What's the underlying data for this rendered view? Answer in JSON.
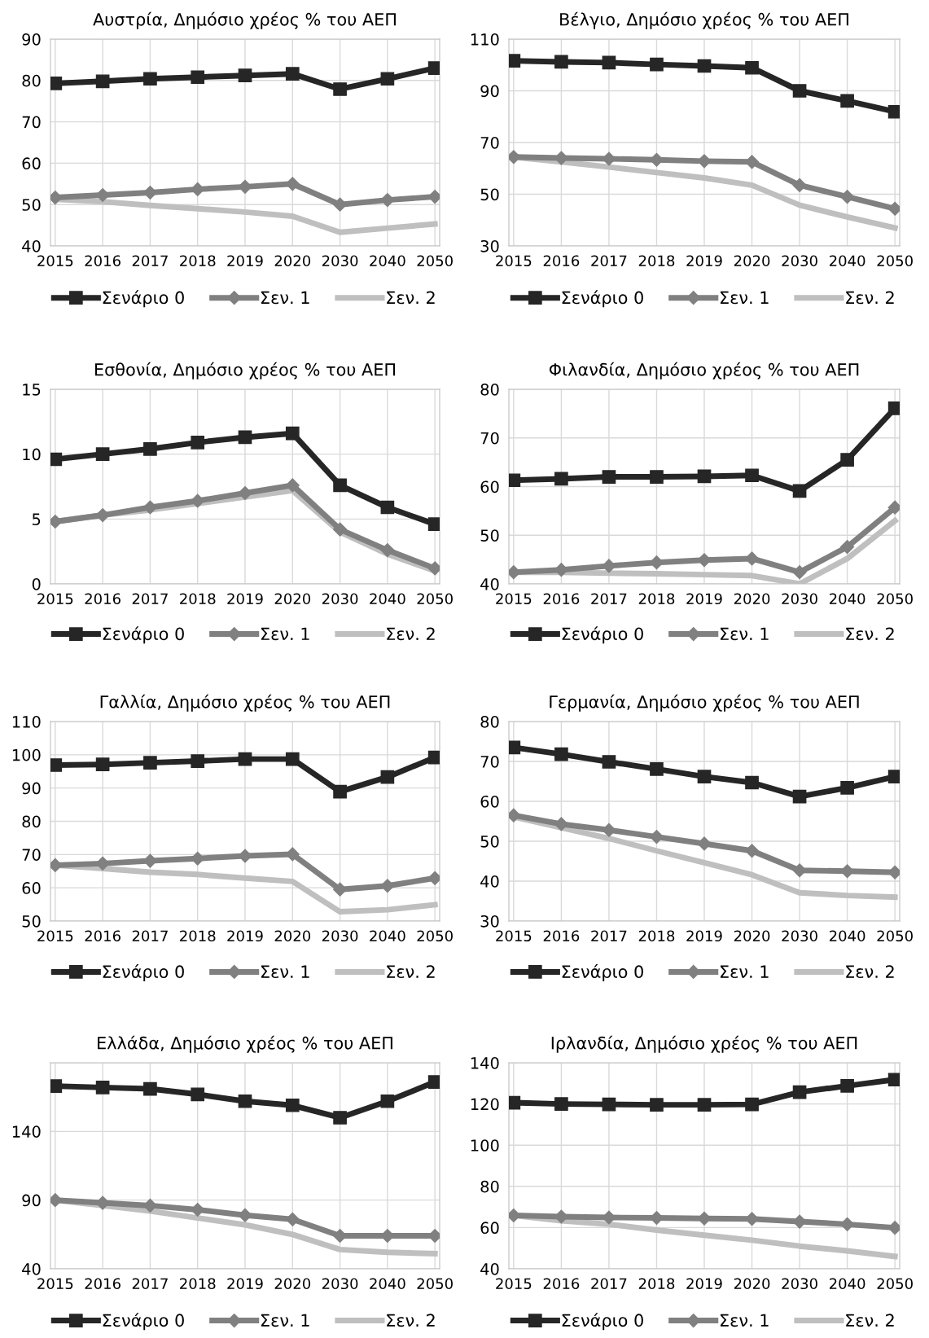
{
  "chart_data": [
    {
      "type": "line",
      "title": "Αυστρία, Δημόσιο χρέος % του ΑΕΠ",
      "categories": [
        "2015",
        "2016",
        "2017",
        "2018",
        "2019",
        "2020",
        "2030",
        "2040",
        "2050"
      ],
      "ylim": [
        40,
        90
      ],
      "yticks": [
        40,
        50,
        60,
        70,
        80,
        90
      ],
      "grid": true,
      "legend": "bottom",
      "line_style": "solid",
      "series": [
        {
          "name": "Σενάριο 0",
          "color": "#262626",
          "marker": "square",
          "values": [
            79.3,
            79.8,
            80.4,
            80.8,
            81.2,
            81.6,
            77.9,
            80.4,
            83.0
          ]
        },
        {
          "name": "Σεν. 1",
          "color": "#808080",
          "marker": "diamond",
          "values": [
            51.7,
            52.3,
            52.9,
            53.7,
            54.3,
            55.0,
            50.0,
            51.1,
            51.9
          ]
        },
        {
          "name": "Σεν. 2",
          "color": "#bfbfbf",
          "marker": "none",
          "values": [
            51.3,
            50.7,
            49.8,
            49.0,
            48.2,
            47.2,
            43.3,
            44.3,
            45.3
          ]
        }
      ]
    },
    {
      "type": "line",
      "title": "Βέλγιο, Δημόσιο χρέος % του ΑΕΠ",
      "categories": [
        "2015",
        "2016",
        "2017",
        "2018",
        "2019",
        "2020",
        "2030",
        "2040",
        "2050"
      ],
      "ylim": [
        30,
        110
      ],
      "yticks": [
        30,
        50,
        70,
        90,
        110
      ],
      "grid": true,
      "legend": "bottom",
      "line_style": "solid",
      "series": [
        {
          "name": "Σενάριο 0",
          "color": "#262626",
          "marker": "square",
          "values": [
            101.6,
            101.2,
            100.9,
            100.2,
            99.6,
            98.9,
            90.0,
            86.1,
            81.9
          ]
        },
        {
          "name": "Σεν. 1",
          "color": "#808080",
          "marker": "diamond",
          "values": [
            64.4,
            64.0,
            63.7,
            63.3,
            62.8,
            62.5,
            53.5,
            49.0,
            44.4
          ]
        },
        {
          "name": "Σεν. 2",
          "color": "#bfbfbf",
          "marker": "none",
          "values": [
            64.4,
            62.5,
            60.5,
            58.4,
            56.3,
            53.5,
            45.8,
            41.2,
            37.0
          ]
        }
      ]
    },
    {
      "type": "line",
      "title": "Εσθονία, Δημόσιο χρέος % του ΑΕΠ",
      "categories": [
        "2015",
        "2016",
        "2017",
        "2018",
        "2019",
        "2020",
        "2030",
        "2040",
        "2050"
      ],
      "ylim": [
        0,
        15
      ],
      "yticks": [
        0,
        5,
        10,
        15
      ],
      "grid": true,
      "legend": "bottom",
      "line_style": "solid",
      "series": [
        {
          "name": "Σενάριο 0",
          "color": "#262626",
          "marker": "square",
          "values": [
            9.6,
            10.0,
            10.4,
            10.9,
            11.3,
            11.6,
            7.6,
            5.9,
            4.6
          ]
        },
        {
          "name": "Σεν. 1",
          "color": "#808080",
          "marker": "diamond",
          "values": [
            4.8,
            5.3,
            5.9,
            6.4,
            7.0,
            7.6,
            4.2,
            2.6,
            1.2
          ]
        },
        {
          "name": "Σεν. 2",
          "color": "#bfbfbf",
          "marker": "none",
          "values": [
            4.8,
            5.3,
            5.7,
            6.2,
            6.7,
            7.2,
            4.0,
            2.3,
            1.0
          ]
        }
      ]
    },
    {
      "type": "line",
      "title": "Φιλανδία, Δημόσιο χρέος % του ΑΕΠ",
      "categories": [
        "2015",
        "2016",
        "2017",
        "2018",
        "2019",
        "2020",
        "2030",
        "2040",
        "2050"
      ],
      "ylim": [
        40,
        80
      ],
      "yticks": [
        40,
        50,
        60,
        70,
        80
      ],
      "grid": true,
      "legend": "bottom",
      "line_style": "solid",
      "series": [
        {
          "name": "Σενάριο 0",
          "color": "#262626",
          "marker": "square",
          "values": [
            61.3,
            61.6,
            62.0,
            62.0,
            62.1,
            62.3,
            59.1,
            65.5,
            76.1
          ]
        },
        {
          "name": "Σεν. 1",
          "color": "#808080",
          "marker": "diamond",
          "values": [
            42.4,
            42.9,
            43.7,
            44.4,
            44.9,
            45.2,
            42.4,
            47.6,
            55.7
          ]
        },
        {
          "name": "Σεν. 2",
          "color": "#bfbfbf",
          "marker": "none",
          "values": [
            42.4,
            42.4,
            42.2,
            42.1,
            41.9,
            41.7,
            40.0,
            45.2,
            53.0
          ]
        }
      ]
    },
    {
      "type": "line",
      "title": "Γαλλία, Δημόσιο χρέος % του ΑΕΠ",
      "categories": [
        "2015",
        "2016",
        "2017",
        "2018",
        "2019",
        "2020",
        "2030",
        "2040",
        "2050"
      ],
      "ylim": [
        50,
        110
      ],
      "yticks": [
        50,
        60,
        70,
        80,
        90,
        100,
        110
      ],
      "grid": true,
      "legend": "bottom",
      "line_style": "solid",
      "series": [
        {
          "name": "Σενάριο 0",
          "color": "#262626",
          "marker": "square",
          "values": [
            96.9,
            97.1,
            97.6,
            98.1,
            98.7,
            98.7,
            88.9,
            93.3,
            99.2
          ]
        },
        {
          "name": "Σεν. 1",
          "color": "#808080",
          "marker": "diamond",
          "values": [
            66.8,
            67.3,
            68.1,
            68.8,
            69.6,
            70.1,
            59.5,
            60.6,
            62.9
          ]
        },
        {
          "name": "Σεν. 2",
          "color": "#bfbfbf",
          "marker": "none",
          "values": [
            66.8,
            65.8,
            64.7,
            64.0,
            62.9,
            61.9,
            52.8,
            53.4,
            54.9
          ]
        }
      ]
    },
    {
      "type": "line",
      "title": "Γερμανία, Δημόσιο χρέος % του ΑΕΠ",
      "categories": [
        "2015",
        "2016",
        "2017",
        "2018",
        "2019",
        "2020",
        "2030",
        "2040",
        "2050"
      ],
      "ylim": [
        30,
        80
      ],
      "yticks": [
        30,
        40,
        50,
        60,
        70,
        80
      ],
      "grid": true,
      "legend": "bottom",
      "line_style": "solid",
      "series": [
        {
          "name": "Σενάριο 0",
          "color": "#262626",
          "marker": "square",
          "values": [
            73.5,
            71.8,
            69.9,
            68.1,
            66.2,
            64.7,
            61.2,
            63.4,
            66.2
          ]
        },
        {
          "name": "Σεν. 1",
          "color": "#808080",
          "marker": "diamond",
          "values": [
            56.5,
            54.3,
            52.8,
            51.1,
            49.4,
            47.6,
            42.7,
            42.5,
            42.2
          ]
        },
        {
          "name": "Σεν. 2",
          "color": "#bfbfbf",
          "marker": "none",
          "values": [
            56.1,
            53.4,
            50.7,
            47.6,
            44.6,
            41.6,
            37.1,
            36.4,
            36.0
          ]
        }
      ]
    },
    {
      "type": "line",
      "title": "Ελλάδα, Δημόσιο χρέος % του ΑΕΠ",
      "categories": [
        "2015",
        "2016",
        "2017",
        "2018",
        "2019",
        "2020",
        "2030",
        "2040",
        "2050"
      ],
      "ylim": [
        40,
        190
      ],
      "yticks": [
        40,
        90,
        140,
        {
          "value": 190,
          "label": null
        }
      ],
      "grid": true,
      "legend": "bottom",
      "line_style": "solid",
      "series": [
        {
          "name": "Σενάριο 0",
          "color": "#262626",
          "marker": "square",
          "values": [
            173,
            172,
            171,
            167,
            162,
            159,
            150,
            162,
            176
          ]
        },
        {
          "name": "Σεν. 1",
          "color": "#808080",
          "marker": "diamond",
          "values": [
            90,
            88,
            86,
            83,
            79,
            76,
            64,
            64,
            64
          ]
        },
        {
          "name": "Σεν. 2",
          "color": "#bfbfbf",
          "marker": "none",
          "values": [
            90,
            86,
            82,
            77,
            72,
            65,
            54,
            52,
            51
          ]
        }
      ]
    },
    {
      "type": "line",
      "title": "Ιρλανδία, Δημόσιο χρέος % του ΑΕΠ",
      "categories": [
        "2015",
        "2016",
        "2017",
        "2018",
        "2019",
        "2020",
        "2030",
        "2040",
        "2050"
      ],
      "ylim": [
        40,
        140
      ],
      "yticks": [
        40,
        60,
        80,
        100,
        120,
        140
      ],
      "grid": true,
      "legend": "bottom",
      "line_style": "solid",
      "series": [
        {
          "name": "Σενάριο 0",
          "color": "#262626",
          "marker": "square",
          "values": [
            120.6,
            120.0,
            119.8,
            119.6,
            119.6,
            119.8,
            125.7,
            128.8,
            131.8
          ]
        },
        {
          "name": "Σεν. 1",
          "color": "#808080",
          "marker": "diamond",
          "values": [
            65.9,
            65.3,
            64.9,
            64.7,
            64.4,
            64.2,
            62.9,
            61.6,
            59.9
          ]
        },
        {
          "name": "Σεν. 2",
          "color": "#bfbfbf",
          "marker": "none",
          "values": [
            65.9,
            63.3,
            61.6,
            58.8,
            56.3,
            53.9,
            51.0,
            48.7,
            46.0
          ]
        }
      ]
    }
  ]
}
